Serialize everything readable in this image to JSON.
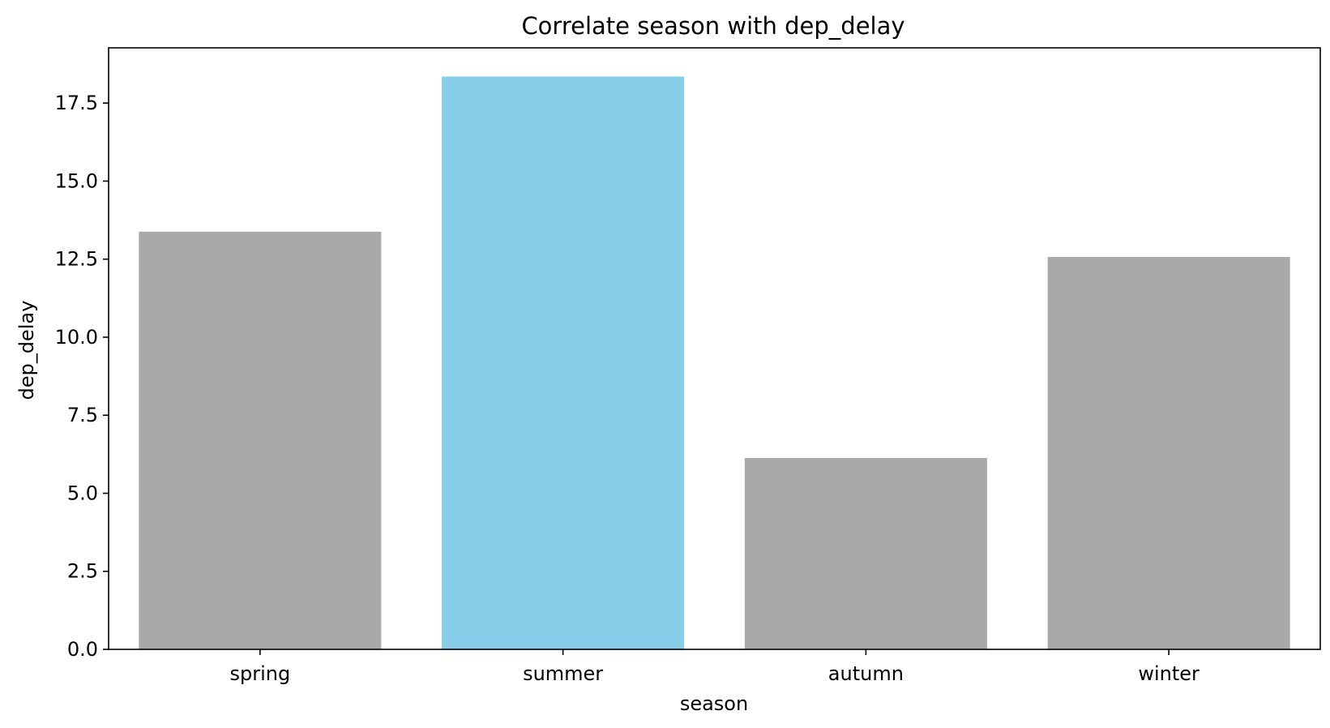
{
  "chart_data": {
    "type": "bar",
    "title": "Correlate season with dep_delay",
    "xlabel": "season",
    "ylabel": "dep_delay",
    "categories": [
      "spring",
      "summer",
      "autumn",
      "winter"
    ],
    "values": [
      13.38,
      18.35,
      6.13,
      12.57
    ],
    "bar_colors": [
      "#a9a9a9",
      "#87ceeb",
      "#a9a9a9",
      "#a9a9a9"
    ],
    "ylim": [
      0,
      19.27
    ],
    "yticks": [
      0.0,
      2.5,
      5.0,
      7.5,
      10.0,
      12.5,
      15.0,
      17.5
    ],
    "ytick_labels": [
      "0.0",
      "2.5",
      "5.0",
      "7.5",
      "10.0",
      "12.5",
      "15.0",
      "17.5"
    ],
    "grid": false,
    "legend": false
  }
}
